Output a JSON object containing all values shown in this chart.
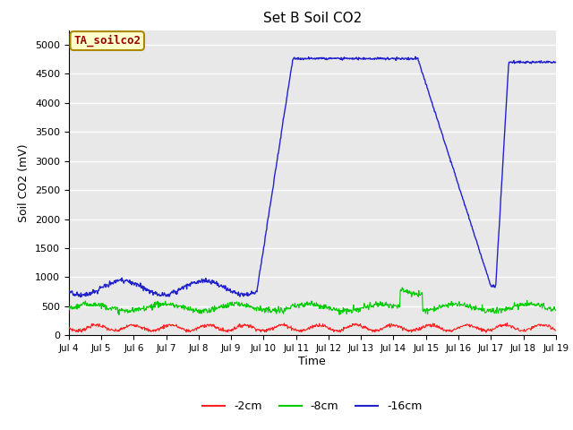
{
  "title": "Set B Soil CO2",
  "ylabel": "Soil CO2 (mV)",
  "xlabel": "Time",
  "annotation_text": "TA_soilco2",
  "annotation_bg": "#ffffcc",
  "annotation_border": "#aa8800",
  "annotation_text_color": "#990000",
  "xlim": [
    4,
    19
  ],
  "ylim": [
    0,
    5250
  ],
  "yticks": [
    0,
    500,
    1000,
    1500,
    2000,
    2500,
    3000,
    3500,
    4000,
    4500,
    5000
  ],
  "xtick_positions": [
    4,
    5,
    6,
    7,
    8,
    9,
    10,
    11,
    12,
    13,
    14,
    15,
    16,
    17,
    18,
    19
  ],
  "xtick_labels": [
    "Jul 4",
    "Jul 5",
    "Jul 6",
    "Jul 7",
    "Jul 8",
    "Jul 9",
    "Jul 10",
    "Jul 11",
    "Jul 12",
    "Jul 13",
    "Jul 14",
    "Jul 15",
    "Jul 16",
    "Jul 17",
    "Jul 18",
    "Jul 19"
  ],
  "plot_bg_color": "#e8e8e8",
  "fig_bg_color": "#ffffff",
  "grid_color": "#ffffff",
  "line_colors": {
    "2cm": "#ff2222",
    "8cm": "#00cc00",
    "16cm": "#2222cc"
  },
  "legend_labels": [
    "-2cm",
    "-8cm",
    "-16cm"
  ],
  "legend_colors": [
    "#ff2222",
    "#00cc00",
    "#2222cc"
  ]
}
